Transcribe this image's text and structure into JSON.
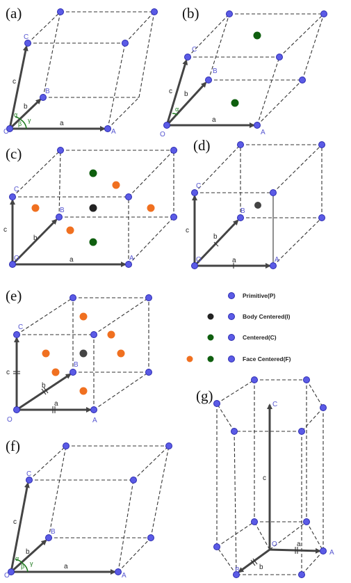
{
  "panels": {
    "a": {
      "label": "(a)",
      "vertices": [
        "O",
        "A",
        "B",
        "C"
      ],
      "axes": [
        "a",
        "b",
        "c"
      ],
      "angles": [
        "α",
        "β",
        "γ"
      ]
    },
    "b": {
      "label": "(b)",
      "vertices": [
        "O",
        "A",
        "B",
        "C"
      ],
      "axes": [
        "a",
        "b",
        "c"
      ],
      "angles": [
        "α"
      ]
    },
    "c": {
      "label": "(c)",
      "vertices": [
        "O",
        "A",
        "B",
        "C"
      ],
      "axes": [
        "a",
        "b",
        "c"
      ]
    },
    "d": {
      "label": "(d)",
      "vertices": [
        "O",
        "A",
        "B",
        "C"
      ],
      "axes": [
        "a",
        "b",
        "c"
      ]
    },
    "e": {
      "label": "(e)",
      "vertices": [
        "O",
        "A",
        "B",
        "C"
      ],
      "axes": [
        "a",
        "b",
        "c"
      ]
    },
    "f": {
      "label": "(f)",
      "vertices": [
        "O",
        "A",
        "B",
        "C"
      ],
      "axes": [
        "a",
        "b",
        "c"
      ],
      "angles": [
        "α",
        "β",
        "γ"
      ]
    },
    "g": {
      "label": "(g)",
      "vertices": [
        "O",
        "A",
        "B",
        "C"
      ],
      "axes": [
        "a",
        "b",
        "c"
      ]
    }
  },
  "legend": {
    "primitive": "Primitive(P)",
    "body_centered": "Body Centered(I)",
    "centered": "Centered(C)",
    "face_centered": "Face Centered(F)"
  },
  "colors": {
    "primitive": "#5b5be6",
    "body_centered": "#222222",
    "centered": "#0f5f0f",
    "face_centered": "#f07020"
  }
}
